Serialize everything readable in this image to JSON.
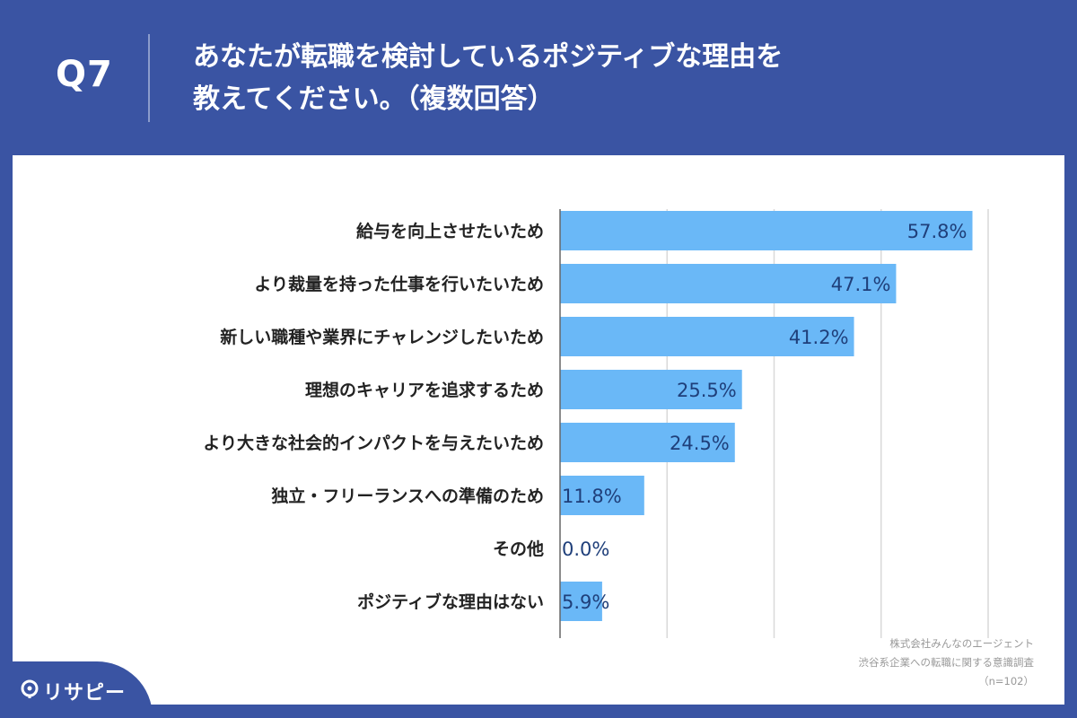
{
  "header": {
    "qnum": "Q7",
    "line1": "あなたが転職を検討しているポジティブな理由を",
    "line2": "教えてください。（複数回答）"
  },
  "chart_data": {
    "type": "bar",
    "orientation": "horizontal",
    "categories": [
      "給与を向上させたいため",
      "より裁量を持った仕事を行いたいため",
      "新しい職種や業界にチャレンジしたいため",
      "理想のキャリアを追求するため",
      "より大きな社会的インパクトを与えたいため",
      "独立・フリーランスへの準備のため",
      "その他",
      "ポジティブな理由はない"
    ],
    "values": [
      57.8,
      47.1,
      41.2,
      25.5,
      24.5,
      11.8,
      0.0,
      5.9
    ],
    "value_labels": [
      "57.8%",
      "47.1%",
      "41.2%",
      "25.5%",
      "24.5%",
      "11.8%",
      "0.0%",
      "5.9%"
    ],
    "xlim": [
      0,
      60
    ],
    "gridlines": [
      15,
      30,
      45,
      60
    ],
    "bar_color": "#6ab8f7",
    "value_label_color": "#1f3f7a"
  },
  "source": {
    "line1": "株式会社みんなのエージェント",
    "line2": "渋谷系企業への転職に関する意識調査",
    "line3": "（n=102）"
  },
  "logo": {
    "text": "リサピー"
  },
  "colors": {
    "background": "#3a54a3",
    "panel": "#ffffff"
  }
}
